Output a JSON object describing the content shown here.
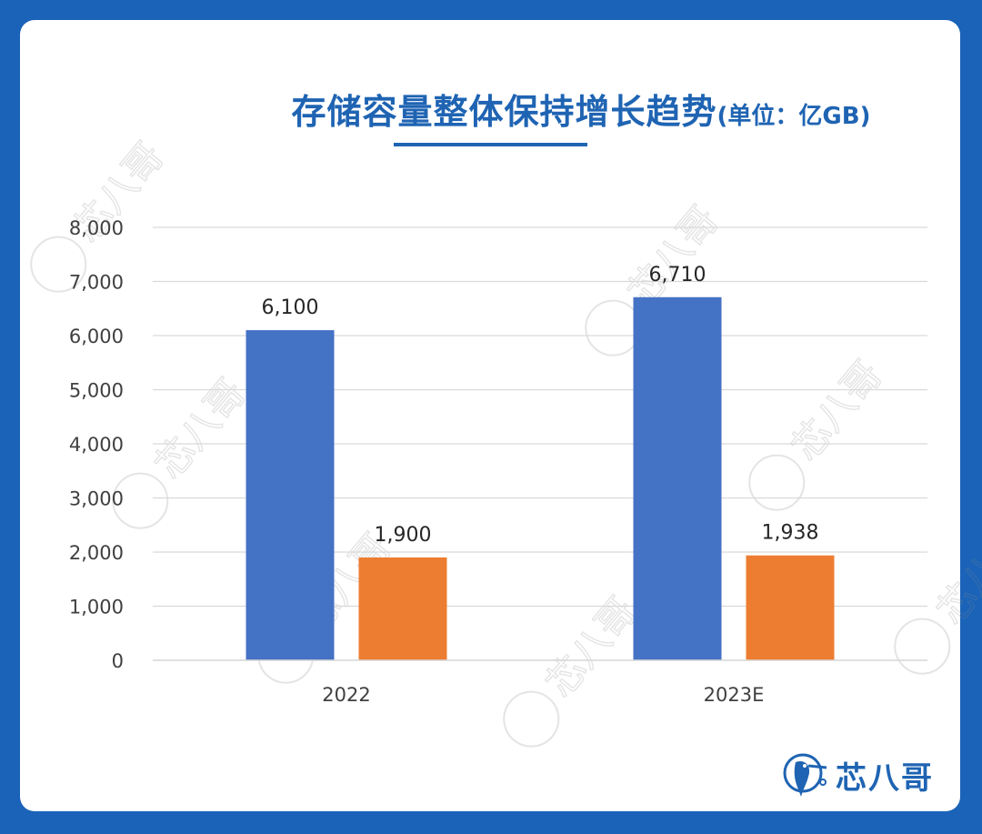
{
  "title": {
    "main": "存储容量整体保持增长趋势",
    "unit": "(单位：亿GB)"
  },
  "watermark": "芯八哥",
  "brand": {
    "name": "芯八哥",
    "color": "#1f64b3"
  },
  "colors": {
    "background": "#1a63b8",
    "series1": "#4472c4",
    "series2": "#ed7d31"
  },
  "chart_data": {
    "type": "bar",
    "categories": [
      "2022",
      "2023E"
    ],
    "series": [
      {
        "values": [
          6100,
          6710
        ],
        "labels": [
          "6,100",
          "6,710"
        ],
        "color": "#4472c4"
      },
      {
        "values": [
          1900,
          1938
        ],
        "labels": [
          "1,900",
          "1,938"
        ],
        "color": "#ed7d31"
      }
    ],
    "ylim": [
      0,
      8000
    ],
    "yticks": [
      0,
      1000,
      2000,
      3000,
      4000,
      5000,
      6000,
      7000,
      8000
    ],
    "ytick_labels": [
      "0",
      "1,000",
      "2,000",
      "3,000",
      "4,000",
      "5,000",
      "6,000",
      "7,000",
      "8,000"
    ],
    "grid": true,
    "legend": "none"
  }
}
